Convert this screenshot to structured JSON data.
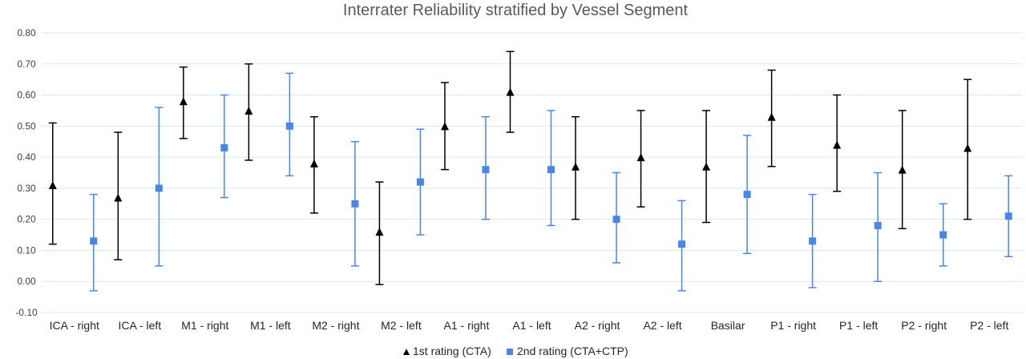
{
  "chart_data": {
    "type": "scatter",
    "title": "Interrater Reliability stratified by Vessel Segment",
    "xlabel": "",
    "ylabel": "",
    "ylim": [
      -0.1,
      0.8
    ],
    "yticks": [
      "-0.10",
      "0.00",
      "0.10",
      "0.20",
      "0.30",
      "0.40",
      "0.50",
      "0.60",
      "0.70",
      "0.80"
    ],
    "grid": true,
    "legend": "bottom",
    "categories": [
      "ICA - right",
      "ICA - left",
      "M1 - right",
      "M1 - left",
      "M2 - right",
      "M2 - left",
      "A1 - right",
      "A1 - left",
      "A2 - right",
      "A2 - left",
      "Basilar",
      "P1 - right",
      "P1 - left",
      "P2 - right",
      "P2 - left"
    ],
    "series": [
      {
        "name": "1st rating (CTA)",
        "marker": "triangle",
        "color": "#000000",
        "values": [
          0.31,
          0.27,
          0.58,
          0.55,
          0.38,
          0.16,
          0.5,
          0.61,
          0.37,
          0.4,
          0.37,
          0.53,
          0.44,
          0.36,
          0.43
        ],
        "lower": [
          0.12,
          0.07,
          0.46,
          0.39,
          0.22,
          -0.01,
          0.36,
          0.48,
          0.2,
          0.24,
          0.19,
          0.37,
          0.29,
          0.17,
          0.2
        ],
        "upper": [
          0.51,
          0.48,
          0.69,
          0.7,
          0.53,
          0.32,
          0.64,
          0.74,
          0.53,
          0.55,
          0.55,
          0.68,
          0.6,
          0.55,
          0.65
        ]
      },
      {
        "name": "2nd rating (CTA+CTP)",
        "marker": "square",
        "color": "#4a86e8",
        "values": [
          0.13,
          0.3,
          0.43,
          0.5,
          0.25,
          0.32,
          0.36,
          0.36,
          0.2,
          0.12,
          0.28,
          0.13,
          0.18,
          0.15,
          0.21
        ],
        "lower": [
          -0.03,
          0.05,
          0.27,
          0.34,
          0.05,
          0.15,
          0.2,
          0.18,
          0.06,
          -0.03,
          0.09,
          -0.02,
          0.0,
          0.05,
          0.08
        ],
        "upper": [
          0.28,
          0.56,
          0.6,
          0.67,
          0.45,
          0.49,
          0.53,
          0.55,
          0.35,
          0.26,
          0.47,
          0.28,
          0.35,
          0.25,
          0.34
        ]
      }
    ]
  }
}
